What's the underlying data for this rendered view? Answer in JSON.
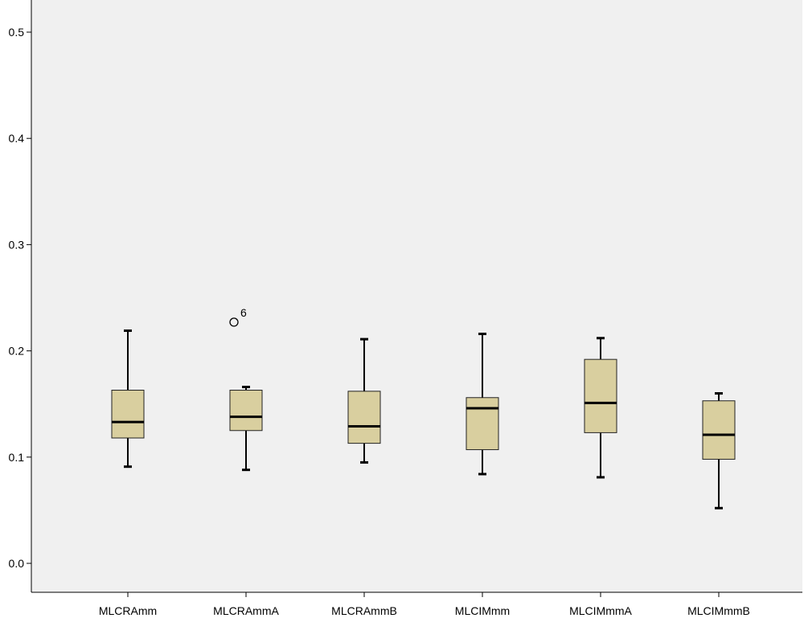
{
  "chart_data": {
    "type": "boxplot",
    "title": "",
    "xlabel": "",
    "ylabel": "",
    "ylim": [
      -0.03,
      0.52
    ],
    "yticks": [
      0.0,
      0.1,
      0.2,
      0.3,
      0.4,
      0.5
    ],
    "ytick_labels": [
      "0.0",
      "0.1",
      "0.2",
      "0.3",
      "0.4",
      "0.5"
    ],
    "grid": false,
    "categories": [
      "MLCRAmm",
      "MLCRAmmA",
      "MLCRAmmB",
      "MLCIMmm",
      "MLCIMmmA",
      "MLCIMmmB"
    ],
    "boxes": [
      {
        "whisker_low": 0.091,
        "q1": 0.118,
        "median": 0.133,
        "q3": 0.163,
        "whisker_high": 0.219,
        "outliers": []
      },
      {
        "whisker_low": 0.088,
        "q1": 0.125,
        "median": 0.138,
        "q3": 0.163,
        "whisker_high": 0.166,
        "outliers": [
          {
            "value": 0.227,
            "label": "6"
          }
        ]
      },
      {
        "whisker_low": 0.095,
        "q1": 0.113,
        "median": 0.129,
        "q3": 0.162,
        "whisker_high": 0.211,
        "outliers": []
      },
      {
        "whisker_low": 0.084,
        "q1": 0.107,
        "median": 0.146,
        "q3": 0.156,
        "whisker_high": 0.216,
        "outliers": []
      },
      {
        "whisker_low": 0.081,
        "q1": 0.123,
        "median": 0.151,
        "q3": 0.192,
        "whisker_high": 0.212,
        "outliers": []
      },
      {
        "whisker_low": 0.052,
        "q1": 0.098,
        "median": 0.121,
        "q3": 0.153,
        "whisker_high": 0.16,
        "outliers": []
      }
    ],
    "colors": {
      "plot_background": "#f0f0f0",
      "box_fill": "#d9cf9f",
      "box_stroke": "#222222",
      "median": "#000000",
      "axis": "#000000"
    }
  }
}
